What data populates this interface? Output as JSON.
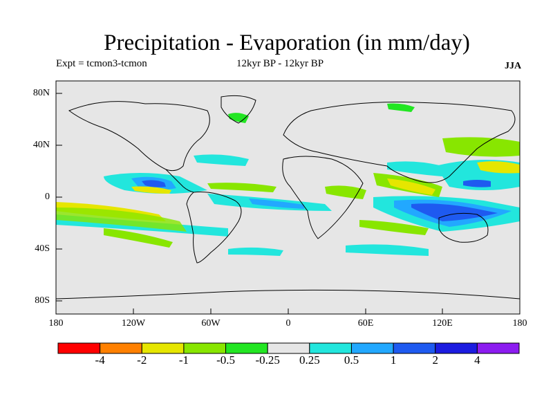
{
  "header": {
    "title": "Precipitation - Evaporation (in mm/day)",
    "experiment": "Expt = tcmon3-tcmon",
    "period": "12kyr BP - 12kyr BP",
    "season": "JJA"
  },
  "map": {
    "projection": "cylindrical-equidistant",
    "lon_range": [
      -180,
      180
    ],
    "lat_range": [
      -90,
      90
    ],
    "background_color": "#e6e6e6",
    "y_ticks": [
      "80N",
      "40N",
      "0",
      "40S",
      "80S"
    ],
    "x_ticks": [
      "180",
      "120W",
      "60W",
      "0",
      "60E",
      "120E",
      "180"
    ]
  },
  "colorbar": {
    "colors": [
      "#ff0000",
      "#ff8000",
      "#e6e600",
      "#88e600",
      "#22e622",
      "#e6e6e6",
      "#22e6dd",
      "#22a8ff",
      "#1e5af0",
      "#1c1ce0",
      "#8c1cf0"
    ],
    "labels": [
      "-4",
      "-2",
      "-1",
      "-0.5",
      "-0.25",
      "0.25",
      "0.5",
      "1",
      "2",
      "4"
    ]
  }
}
